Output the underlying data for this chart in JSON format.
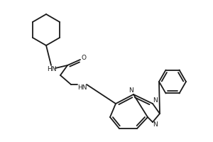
{
  "bg_color": "#ffffff",
  "line_color": "#1a1a1a",
  "line_width": 1.3,
  "font_size": 6.5,
  "figsize": [
    3.0,
    2.0
  ],
  "dpi": 100,
  "xlim": [
    0,
    300
  ],
  "ylim": [
    0,
    200
  ]
}
